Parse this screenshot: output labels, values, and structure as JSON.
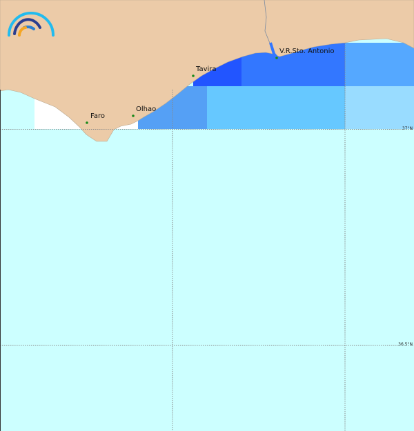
{
  "cities": [
    {
      "name": "Faro"
    },
    {
      "name": "Olhao"
    },
    {
      "name": "Tavira"
    },
    {
      "name": "V.R.Sto. Antonio"
    }
  ],
  "latitude_labels": [
    "37°N",
    "36.5°N"
  ],
  "colors": {
    "land": "#eccba8",
    "sea_default": "#ccffff",
    "cell_darkest": "#2255ff",
    "cell_dark": "#3377ff",
    "cell_medium": "#55a8ff",
    "cell_light": "#66c8ff",
    "cell_lightest": "#99dcff",
    "city_marker": "#1a8a1a"
  },
  "logo": {
    "icon": "rainbow-arcs-logo"
  }
}
